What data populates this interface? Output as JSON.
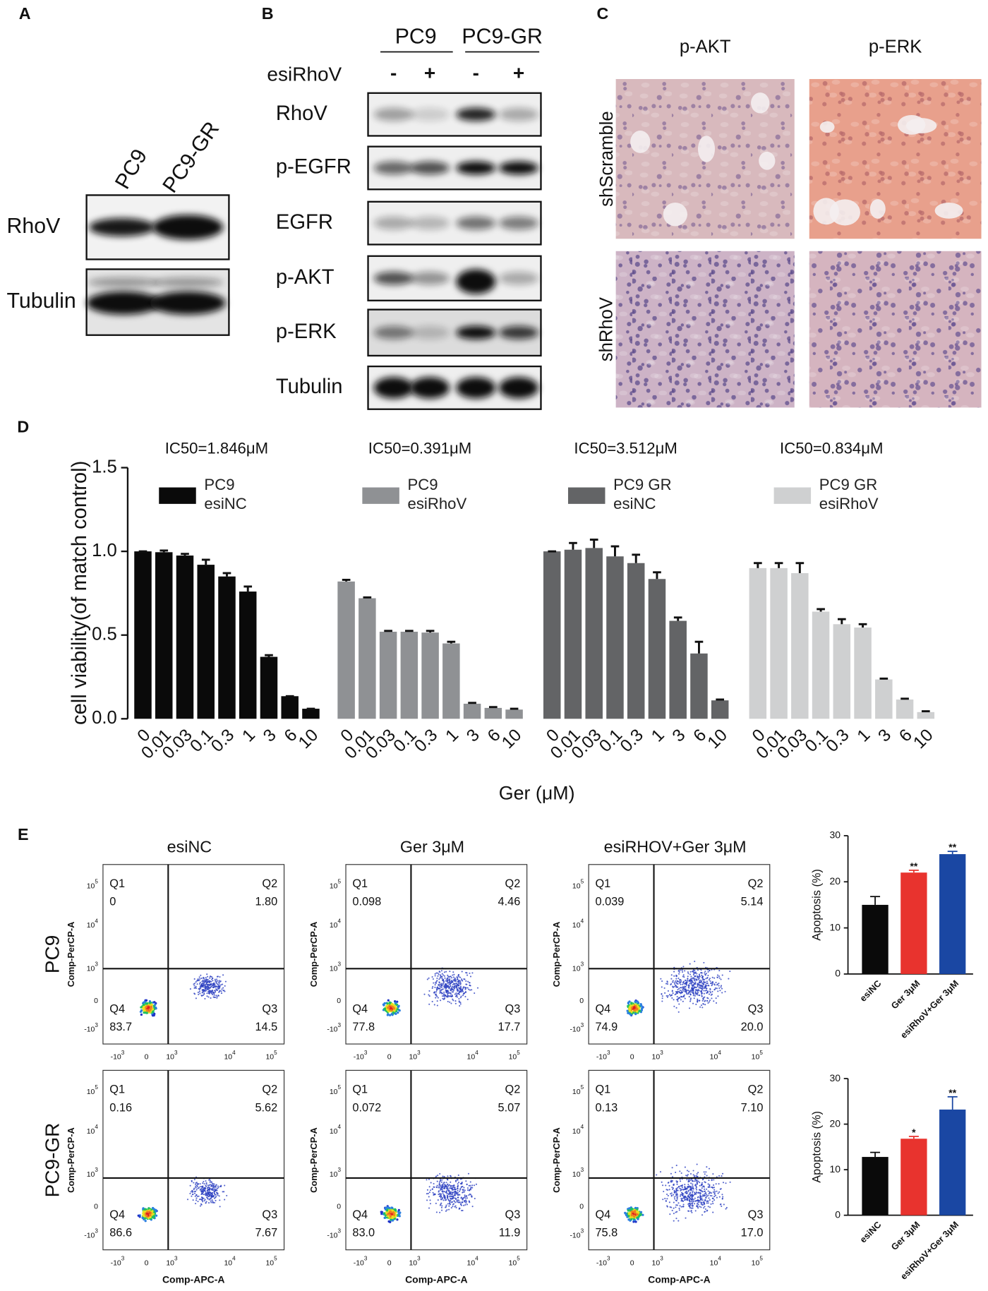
{
  "figure": {
    "A": {
      "label": "A",
      "columns": [
        "PC9",
        "PC9-GR"
      ],
      "rows": [
        "RhoV",
        "Tubulin"
      ]
    },
    "B": {
      "label": "B",
      "groups": [
        "PC9",
        "PC9-GR"
      ],
      "treatment": "esiRhoV",
      "signs": [
        "-",
        "+",
        "-",
        "+"
      ],
      "rows": [
        "RhoV",
        "p-EGFR",
        "EGFR",
        "p-AKT",
        "p-ERK",
        "Tubulin"
      ]
    },
    "C": {
      "label": "C",
      "columns": [
        "p-AKT",
        "p-ERK"
      ],
      "rows": [
        "shScramble",
        "shRhoV"
      ]
    },
    "D": {
      "label": "D"
    },
    "E": {
      "label": "E",
      "columns": [
        "esiNC",
        "Ger 3μM",
        "esiRHOV+Ger 3μM"
      ],
      "rows": [
        "PC9",
        "PC9-GR"
      ],
      "x_label": "Comp-APC-A",
      "y_label": "Comp-PerCP-A",
      "yticks": [
        {
          "base": "10",
          "exp": "5"
        },
        {
          "base": "10",
          "exp": "4"
        },
        {
          "base": "10",
          "exp": "3"
        },
        {
          "base": "0"
        },
        {
          "base": "-10",
          "exp": "3"
        }
      ],
      "xticks": [
        {
          "base": "-10",
          "exp": "3"
        },
        {
          "base": "0"
        },
        {
          "base": "10",
          "exp": "3"
        },
        {
          "base": "10",
          "exp": "4"
        },
        {
          "base": "10",
          "exp": "5"
        }
      ],
      "quadrants": [
        "Q1",
        "Q2",
        "Q3",
        "Q4"
      ],
      "values": [
        [
          [
            "0",
            "1.80",
            "14.5",
            "83.7"
          ],
          [
            "0.098",
            "4.46",
            "17.7",
            "77.8"
          ],
          [
            "0.039",
            "5.14",
            "20.0",
            "74.9"
          ]
        ],
        [
          [
            "0.16",
            "5.62",
            "7.67",
            "86.6"
          ],
          [
            "0.072",
            "5.07",
            "11.9",
            "83.0"
          ],
          [
            "0.13",
            "7.10",
            "17.0",
            "75.8"
          ]
        ]
      ]
    }
  },
  "chart_data": [
    {
      "type": "bar",
      "ylabel": "cell viability(of match control)",
      "xlabel": "Ger (μM)",
      "categories": [
        "0",
        "0.01",
        "0.03",
        "0.1",
        "0.3",
        "1",
        "3",
        "6",
        "10"
      ],
      "ylim": [
        0,
        1.5
      ],
      "yticks": [
        {
          "value": 0,
          "label": "0.0"
        },
        0.5,
        {
          "value": 1,
          "label": "1.0"
        },
        {
          "value": 1.5,
          "label": "1.5"
        }
      ],
      "series": [
        {
          "name": "PC9 esiNC",
          "annotation": "IC50=1.846μM",
          "color": "#0a0a0a",
          "values": [
            1.0,
            0.995,
            0.975,
            0.92,
            0.85,
            0.76,
            0.37,
            0.135,
            0.06
          ],
          "errors": [
            0,
            0.01,
            0.01,
            0.03,
            0.02,
            0.03,
            0.01,
            0,
            0
          ]
        },
        {
          "name": "PC9 esiRhoV",
          "annotation": "IC50=0.391μM",
          "color": "#8f9194",
          "values": [
            0.82,
            0.72,
            0.52,
            0.52,
            0.515,
            0.45,
            0.09,
            0.065,
            0.055
          ],
          "errors": [
            0.01,
            0.005,
            0.005,
            0.005,
            0.01,
            0.01,
            0.005,
            0.005,
            0.005
          ]
        },
        {
          "name": "PC9 GR esiNC",
          "annotation": "IC50=3.512μM",
          "color": "#636466",
          "values": [
            1.0,
            1.01,
            1.02,
            0.97,
            0.93,
            0.835,
            0.585,
            0.39,
            0.11
          ],
          "errors": [
            0,
            0.04,
            0.05,
            0.06,
            0.05,
            0.04,
            0.02,
            0.07,
            0.005
          ]
        },
        {
          "name": "PC9 GR esiRhoV",
          "annotation": "IC50=0.834μM",
          "color": "#cfd0d1",
          "values": [
            0.9,
            0.9,
            0.87,
            0.64,
            0.565,
            0.545,
            0.235,
            0.115,
            0.04
          ],
          "errors": [
            0.03,
            0.03,
            0.06,
            0.015,
            0.03,
            0.02,
            0.005,
            0.005,
            0.005
          ]
        }
      ]
    },
    {
      "type": "bar",
      "ylabel": "Apoptosis (%)",
      "categories": [
        "esiNC",
        "Ger 3μM",
        "esiRhoV+Ger 3μM"
      ],
      "values": [
        15,
        22,
        26
      ],
      "errors": [
        1.8,
        0.5,
        0.6
      ],
      "colors": [
        "#0a0a0a",
        "#e8332e",
        "#1a47a3"
      ],
      "significance": [
        null,
        "**",
        "**"
      ],
      "ylim": [
        0,
        30
      ],
      "yticks": [
        0,
        10,
        20,
        30
      ]
    },
    {
      "type": "bar",
      "ylabel": "Apoptosis (%)",
      "categories": [
        "esiNC",
        "Ger 3μM",
        "esiRhoV+Ger 3μM"
      ],
      "values": [
        12.8,
        16.8,
        23.2
      ],
      "errors": [
        1,
        0.5,
        2.8
      ],
      "colors": [
        "#0a0a0a",
        "#e8332e",
        "#1a47a3"
      ],
      "significance": [
        null,
        "*",
        "**"
      ],
      "ylim": [
        0,
        30
      ],
      "yticks": [
        0,
        10,
        20,
        30
      ]
    }
  ]
}
